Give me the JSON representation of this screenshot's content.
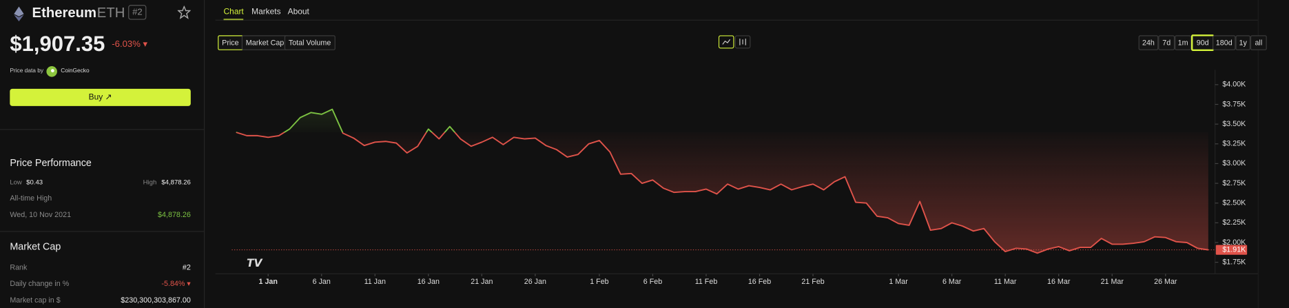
{
  "header": {
    "name": "Ethereum",
    "symbol": "ETH",
    "rank": "#2"
  },
  "price": {
    "value": "$1,907.35",
    "change": "-6.03% ▾"
  },
  "source": {
    "label": "Price data by",
    "name": "CoinGecko"
  },
  "buy_button": "Buy",
  "performance": {
    "title": "Price Performance",
    "low_label": "Low",
    "low": "$0.43",
    "high_label": "High",
    "high": "$4,878.26",
    "ath_label": "All-time High",
    "ath_date": "Wed, 10 Nov 2021",
    "ath_value": "$4,878.26"
  },
  "market_cap": {
    "title": "Market Cap",
    "rows": [
      [
        "Rank",
        "#2"
      ],
      [
        "Daily change in %",
        "-5.84% ▾"
      ],
      [
        "Market cap in $",
        "$230,300,303,867.00"
      ]
    ]
  },
  "tabs": [
    "Chart",
    "Markets",
    "About"
  ],
  "metric_buttons": [
    "Price",
    "Market Cap",
    "Total Volume"
  ],
  "ranges": [
    "24h",
    "7d",
    "1m",
    "90d",
    "180d",
    "1y",
    "all"
  ],
  "chart_data": {
    "type": "line",
    "x": [
      -3,
      -2,
      -1,
      0,
      1,
      2,
      3,
      4,
      5,
      6,
      7,
      8,
      9,
      10,
      11,
      12,
      13,
      14,
      15,
      16,
      17,
      18,
      19,
      20,
      21,
      22,
      23,
      24,
      25,
      26,
      27,
      28,
      29,
      30,
      31,
      32,
      33,
      34,
      35,
      36,
      37,
      38,
      39,
      40,
      41,
      42,
      43,
      44,
      45,
      46,
      47,
      48,
      49,
      50,
      51,
      52,
      53,
      54,
      55,
      56,
      57,
      58,
      59,
      60,
      61,
      62,
      63,
      64,
      65,
      66,
      67,
      68,
      69,
      70,
      71,
      72,
      73,
      74,
      75,
      76,
      77,
      78,
      79,
      80,
      81,
      82,
      83,
      84,
      85,
      86,
      87,
      88
    ],
    "values": [
      3396,
      3354,
      3354,
      3333,
      3354,
      3437,
      3583,
      3646,
      3625,
      3688,
      3385,
      3323,
      3229,
      3271,
      3281,
      3260,
      3135,
      3219,
      3437,
      3313,
      3469,
      3313,
      3219,
      3271,
      3333,
      3240,
      3333,
      3313,
      3323,
      3229,
      3177,
      3083,
      3115,
      3250,
      3292,
      3146,
      2865,
      2875,
      2750,
      2792,
      2688,
      2635,
      2646,
      2646,
      2677,
      2615,
      2740,
      2677,
      2719,
      2698,
      2667,
      2740,
      2667,
      2708,
      2740,
      2667,
      2771,
      2833,
      2510,
      2500,
      2333,
      2313,
      2240,
      2219,
      2521,
      2156,
      2177,
      2250,
      2208,
      2146,
      2177,
      2010,
      1885,
      1927,
      1917,
      1865,
      1917,
      1948,
      1896,
      1938,
      1938,
      2052,
      1979,
      1979,
      1990,
      2010,
      2073,
      2063,
      2010,
      2000,
      1927,
      1907
    ],
    "up_color": "#7cc242",
    "down_color": "#e0534a",
    "last_label": "$1.91K",
    "xlim": [
      -3.4,
      88.4
    ],
    "ylim": [
      1604,
      4187
    ],
    "xticks": [
      {
        "value": 0,
        "label": "1 Jan"
      },
      {
        "value": 5,
        "label": "6 Jan"
      },
      {
        "value": 10,
        "label": "11 Jan"
      },
      {
        "value": 15,
        "label": "16 Jan"
      },
      {
        "value": 20,
        "label": "21 Jan"
      },
      {
        "value": 25,
        "label": "26 Jan"
      },
      {
        "value": 31,
        "label": "1 Feb"
      },
      {
        "value": 36,
        "label": "6 Feb"
      },
      {
        "value": 41,
        "label": "11 Feb"
      },
      {
        "value": 46,
        "label": "16 Feb"
      },
      {
        "value": 51,
        "label": "21 Feb"
      },
      {
        "value": 59,
        "label": "1 Mar"
      },
      {
        "value": 64,
        "label": "6 Mar"
      },
      {
        "value": 69,
        "label": "11 Mar"
      },
      {
        "value": 74,
        "label": "16 Mar"
      },
      {
        "value": 79,
        "label": "21 Mar"
      },
      {
        "value": 84,
        "label": "26 Mar"
      }
    ],
    "yticks": [
      {
        "value": 1750,
        "label": "$1.75K"
      },
      {
        "value": 2000,
        "label": "$2.00K"
      },
      {
        "value": 2250,
        "label": "$2.25K"
      },
      {
        "value": 2500,
        "label": "$2.50K"
      },
      {
        "value": 2750,
        "label": "$2.75K"
      },
      {
        "value": 3000,
        "label": "$3.00K"
      },
      {
        "value": 3250,
        "label": "$3.25K"
      },
      {
        "value": 3500,
        "label": "$3.50K"
      },
      {
        "value": 3750,
        "label": "$3.75K"
      },
      {
        "value": 4000,
        "label": "$4.00K"
      }
    ]
  }
}
